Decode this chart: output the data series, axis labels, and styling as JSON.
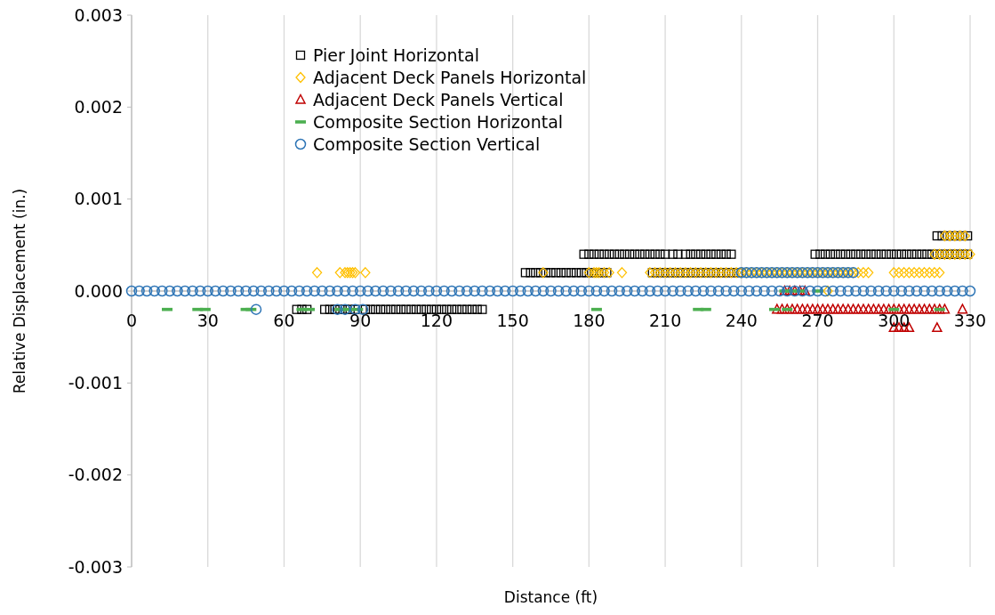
{
  "chart_data": {
    "type": "scatter",
    "xlabel": "Distance (ft)",
    "ylabel": "Relative Displacement (in.)",
    "xlim": [
      0,
      330
    ],
    "xticks": [
      0,
      30,
      60,
      90,
      120,
      150,
      180,
      210,
      240,
      270,
      300,
      330
    ],
    "ylim": [
      -0.003,
      0.003
    ],
    "yticks": [
      -0.003,
      -0.002,
      -0.001,
      {
        "value": 0,
        "label": "0.000"
      },
      0.001,
      0.002,
      0.003
    ],
    "grid": "x",
    "legend": "top left",
    "series": [
      {
        "name": "Pier Joint Horizontal",
        "color": "#000000",
        "marker": "square",
        "x": [
          65,
          67,
          69,
          76,
          78,
          80,
          82,
          84,
          86,
          88,
          92,
          94,
          96,
          98,
          100,
          102,
          104,
          106,
          108,
          110,
          112,
          114,
          116,
          118,
          120,
          122,
          124,
          126,
          128,
          130,
          132,
          134,
          136,
          138,
          155,
          157,
          159,
          161,
          163,
          165,
          167,
          169,
          171,
          173,
          175,
          177,
          179,
          181,
          183,
          185,
          187,
          205,
          207,
          209,
          211,
          213,
          215,
          217,
          219,
          221,
          223,
          225,
          227,
          229,
          231,
          233,
          235,
          237,
          239,
          178,
          180,
          182,
          184,
          186,
          188,
          190,
          192,
          194,
          196,
          198,
          200,
          202,
          204,
          206,
          208,
          210,
          213,
          215,
          218,
          220,
          222,
          224,
          226,
          228,
          230,
          232,
          234,
          236,
          269,
          271,
          273,
          275,
          277,
          279,
          281,
          283,
          285,
          287,
          289,
          291,
          293,
          295,
          297,
          299,
          301,
          303,
          305,
          307,
          309,
          311,
          313,
          315,
          317,
          319,
          321,
          323,
          325,
          327,
          329,
          317,
          319,
          321,
          323,
          325,
          327,
          329
        ],
        "values": [
          -0.0002,
          -0.0002,
          -0.0002,
          -0.0002,
          -0.0002,
          -0.0002,
          -0.0002,
          -0.0002,
          -0.0002,
          -0.0002,
          -0.0002,
          -0.0002,
          -0.0002,
          -0.0002,
          -0.0002,
          -0.0002,
          -0.0002,
          -0.0002,
          -0.0002,
          -0.0002,
          -0.0002,
          -0.0002,
          -0.0002,
          -0.0002,
          -0.0002,
          -0.0002,
          -0.0002,
          -0.0002,
          -0.0002,
          -0.0002,
          -0.0002,
          -0.0002,
          -0.0002,
          -0.0002,
          0.0002,
          0.0002,
          0.0002,
          0.0002,
          0.0002,
          0.0002,
          0.0002,
          0.0002,
          0.0002,
          0.0002,
          0.0002,
          0.0002,
          0.0002,
          0.0002,
          0.0002,
          0.0002,
          0.0002,
          0.0002,
          0.0002,
          0.0002,
          0.0002,
          0.0002,
          0.0002,
          0.0002,
          0.0002,
          0.0002,
          0.0002,
          0.0002,
          0.0002,
          0.0002,
          0.0002,
          0.0002,
          0.0002,
          0.0002,
          0.0002,
          0.0004,
          0.0004,
          0.0004,
          0.0004,
          0.0004,
          0.0004,
          0.0004,
          0.0004,
          0.0004,
          0.0004,
          0.0004,
          0.0004,
          0.0004,
          0.0004,
          0.0004,
          0.0004,
          0.0004,
          0.0004,
          0.0004,
          0.0004,
          0.0004,
          0.0004,
          0.0004,
          0.0004,
          0.0004,
          0.0004,
          0.0004,
          0.0004,
          0.0004,
          0.0004,
          0.0004,
          0.0004,
          0.0004,
          0.0004,
          0.0004,
          0.0004,
          0.0004,
          0.0004,
          0.0004,
          0.0004,
          0.0004,
          0.0004,
          0.0004,
          0.0004,
          0.0004,
          0.0004,
          0.0004,
          0.0004,
          0.0004,
          0.0004,
          0.0004,
          0.0004,
          0.0004,
          0.0004,
          0.0004,
          0.0004,
          0.0004,
          0.0004,
          0.0004,
          0.0004,
          0.0006,
          0.0006,
          0.0006,
          0.0006,
          0.0006,
          0.0006,
          0.0006
        ]
      },
      {
        "name": "Adjacent Deck Panels Horizontal",
        "color": "#ffc000",
        "marker": "diamond",
        "x": [
          73,
          82,
          84,
          85,
          86,
          87,
          88,
          92,
          162,
          180,
          182,
          183,
          184,
          186,
          188,
          193,
          204,
          206,
          208,
          210,
          212,
          214,
          216,
          218,
          220,
          222,
          224,
          226,
          228,
          230,
          232,
          234,
          236,
          238,
          240,
          242,
          244,
          246,
          248,
          250,
          252,
          254,
          256,
          258,
          260,
          262,
          264,
          266,
          268,
          270,
          272,
          274,
          276,
          278,
          280,
          282,
          284,
          286,
          288,
          290,
          300,
          302,
          304,
          306,
          308,
          310,
          312,
          314,
          316,
          318,
          316,
          318,
          320,
          322,
          324,
          326,
          328,
          330,
          320,
          322,
          324,
          326,
          328,
          274
        ],
        "values": [
          0.0002,
          0.0002,
          0.0002,
          0.0002,
          0.0002,
          0.0002,
          0.0002,
          0.0002,
          0.0002,
          0.0002,
          0.0002,
          0.0002,
          0.0002,
          0.0002,
          0.0002,
          0.0002,
          0.0002,
          0.0002,
          0.0002,
          0.0002,
          0.0002,
          0.0002,
          0.0002,
          0.0002,
          0.0002,
          0.0002,
          0.0002,
          0.0002,
          0.0002,
          0.0002,
          0.0002,
          0.0002,
          0.0002,
          0.0002,
          0.0002,
          0.0002,
          0.0002,
          0.0002,
          0.0002,
          0.0002,
          0.0002,
          0.0002,
          0.0002,
          0.0002,
          0.0002,
          0.0002,
          0.0002,
          0.0002,
          0.0002,
          0.0002,
          0.0002,
          0.0002,
          0.0002,
          0.0002,
          0.0002,
          0.0002,
          0.0002,
          0.0002,
          0.0002,
          0.0002,
          0.0002,
          0.0002,
          0.0002,
          0.0002,
          0.0002,
          0.0002,
          0.0002,
          0.0002,
          0.0002,
          0.0002,
          0.0004,
          0.0004,
          0.0004,
          0.0004,
          0.0004,
          0.0004,
          0.0004,
          0.0004,
          0.0006,
          0.0006,
          0.0006,
          0.0006,
          0.0006,
          0
        ]
      },
      {
        "name": "Adjacent Deck Panels Vertical",
        "color": "#c00000",
        "marker": "triangle",
        "x": [
          257,
          259,
          261,
          263,
          265,
          254,
          256,
          258,
          260,
          262,
          264,
          266,
          268,
          270,
          272,
          274,
          276,
          278,
          280,
          282,
          284,
          286,
          288,
          290,
          292,
          294,
          296,
          298,
          300,
          302,
          304,
          306,
          308,
          310,
          312,
          314,
          316,
          318,
          320,
          327,
          300,
          302,
          304,
          306,
          317
        ],
        "values": [
          0,
          0,
          0,
          0,
          0,
          -0.0002,
          -0.0002,
          -0.0002,
          -0.0002,
          -0.0002,
          -0.0002,
          -0.0002,
          -0.0002,
          -0.0002,
          -0.0002,
          -0.0002,
          -0.0002,
          -0.0002,
          -0.0002,
          -0.0002,
          -0.0002,
          -0.0002,
          -0.0002,
          -0.0002,
          -0.0002,
          -0.0002,
          -0.0002,
          -0.0002,
          -0.0002,
          -0.0002,
          -0.0002,
          -0.0002,
          -0.0002,
          -0.0002,
          -0.0002,
          -0.0002,
          -0.0002,
          -0.0002,
          -0.0002,
          -0.0002,
          -0.0004,
          -0.0004,
          -0.0004,
          -0.0004,
          -0.0004
        ]
      },
      {
        "name": "Composite Section Horizontal",
        "color": "#4caf50",
        "x": [
          14,
          26,
          29,
          45,
          47,
          67,
          70,
          82,
          85,
          89,
          183,
          223,
          226,
          253,
          258,
          300,
          318,
          257,
          260,
          263,
          270
        ],
        "values": [
          -0.0002,
          -0.0002,
          -0.0002,
          -0.0002,
          -0.0002,
          -0.0002,
          -0.0002,
          -0.0002,
          -0.0002,
          -0.0002,
          -0.0002,
          -0.0002,
          -0.0002,
          -0.0002,
          -0.0002,
          -0.0002,
          -0.0002,
          0,
          0,
          0,
          0
        ]
      },
      {
        "name": "Composite Section Vertical",
        "color": "#2e75b6",
        "marker": "circle",
        "x": [
          0,
          3,
          6,
          9,
          12,
          15,
          18,
          21,
          24,
          27,
          30,
          33,
          36,
          39,
          42,
          45,
          48,
          51,
          54,
          57,
          60,
          63,
          66,
          69,
          72,
          75,
          78,
          81,
          84,
          87,
          90,
          93,
          96,
          99,
          102,
          105,
          108,
          111,
          114,
          117,
          120,
          123,
          126,
          129,
          132,
          135,
          138,
          141,
          144,
          147,
          150,
          153,
          156,
          159,
          162,
          165,
          168,
          171,
          174,
          177,
          180,
          183,
          186,
          189,
          192,
          195,
          198,
          201,
          204,
          207,
          210,
          213,
          216,
          219,
          222,
          225,
          228,
          231,
          234,
          237,
          240,
          243,
          246,
          249,
          252,
          255,
          258,
          261,
          264,
          267,
          270,
          273,
          276,
          279,
          282,
          285,
          288,
          291,
          294,
          297,
          300,
          303,
          306,
          309,
          312,
          315,
          318,
          321,
          324,
          327,
          330,
          49,
          81,
          84,
          88,
          91,
          240,
          242,
          244,
          246,
          248,
          250,
          252,
          254,
          256,
          258,
          260,
          262,
          264,
          266,
          268,
          270,
          272,
          274,
          276,
          278,
          280,
          282,
          284
        ],
        "values": [
          0,
          0,
          0,
          0,
          0,
          0,
          0,
          0,
          0,
          0,
          0,
          0,
          0,
          0,
          0,
          0,
          0,
          0,
          0,
          0,
          0,
          0,
          0,
          0,
          0,
          0,
          0,
          0,
          0,
          0,
          0,
          0,
          0,
          0,
          0,
          0,
          0,
          0,
          0,
          0,
          0,
          0,
          0,
          0,
          0,
          0,
          0,
          0,
          0,
          0,
          0,
          0,
          0,
          0,
          0,
          0,
          0,
          0,
          0,
          0,
          0,
          0,
          0,
          0,
          0,
          0,
          0,
          0,
          0,
          0,
          0,
          0,
          0,
          0,
          0,
          0,
          0,
          0,
          0,
          0,
          0,
          0,
          0,
          0,
          0,
          0,
          0,
          0,
          0,
          0,
          0,
          0,
          0,
          0,
          0,
          0,
          0,
          0,
          0,
          0,
          0,
          0,
          0,
          0,
          0,
          0,
          0,
          0,
          0,
          0,
          0,
          -0.0002,
          -0.0002,
          -0.0002,
          -0.0002,
          -0.0002,
          0.0002,
          0.0002,
          0.0002,
          0.0002,
          0.0002,
          0.0002,
          0.0002,
          0.0002,
          0.0002,
          0.0002,
          0.0002,
          0.0002,
          0.0002,
          0.0002,
          0.0002,
          0.0002,
          0.0002,
          0.0002,
          0.0002,
          0.0002,
          0.0002,
          0.0002,
          0.0002
        ]
      }
    ]
  }
}
